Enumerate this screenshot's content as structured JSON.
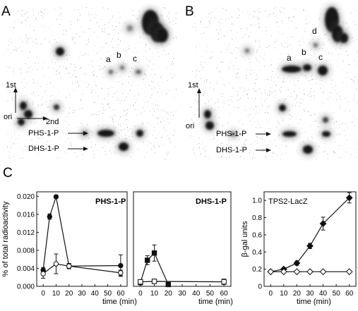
{
  "panels": {
    "a": {
      "letter": "A",
      "first_dim": "1st",
      "second_dim": "2nd",
      "origin": "ori",
      "phs_label": "PHS-1-P",
      "dhs_label": "DHS-1-P",
      "spot_labels": [
        "a",
        "b",
        "c"
      ]
    },
    "b": {
      "letter": "B",
      "first_dim": "1st",
      "origin": "ori",
      "phs_label": "PHS-1-P",
      "dhs_label": "DHS-1-P",
      "spot_labels": [
        "a",
        "b",
        "c",
        "d"
      ]
    },
    "c": {
      "letter": "C"
    }
  },
  "chart_data": [
    {
      "type": "line",
      "title": "PHS-1-P",
      "xlabel": "time (min)",
      "ylabel": "% of total radioactivity",
      "xlim": [
        -5,
        65
      ],
      "ylim": [
        0,
        0.021
      ],
      "xticks": [
        0,
        10,
        20,
        30,
        40,
        50,
        60
      ],
      "yticks": [
        0,
        0.004,
        0.008,
        0.012,
        0.016,
        0.02
      ],
      "ytick_labels": [
        "0.000",
        "0.004",
        "0.008",
        "0.012",
        "0.016",
        "0.020"
      ],
      "grid": false,
      "series": [
        {
          "marker": "filled-circle",
          "color": "#111111",
          "x": [
            0,
            5,
            10,
            20,
            60
          ],
          "y": [
            0.0036,
            0.0155,
            0.0199,
            0.0045,
            0.0046
          ],
          "err": [
            0.0006,
            0.0006,
            0.0003,
            0.0004,
            0.0024
          ]
        },
        {
          "marker": "open-circle",
          "color": "#111111",
          "x": [
            0,
            10,
            20,
            60
          ],
          "y": [
            0.0028,
            0.005,
            0.0045,
            0.003
          ],
          "err": [
            0.001,
            0.0022,
            0.0006,
            0.0006
          ]
        }
      ]
    },
    {
      "type": "line",
      "title": "DHS-1-P",
      "xlabel": "time (min)",
      "xlim": [
        -5,
        65
      ],
      "ylim": [
        0,
        0.021
      ],
      "xticks": [
        0,
        10,
        20,
        30,
        40,
        50,
        60
      ],
      "grid": false,
      "series": [
        {
          "marker": "filled-square",
          "color": "#111111",
          "x": [
            0,
            5,
            10,
            20
          ],
          "y": [
            0.0009,
            0.0058,
            0.0074,
            0.0004
          ],
          "err": [
            0.0006,
            0.001,
            0.0018,
            0.0002
          ]
        },
        {
          "marker": "open-square",
          "color": "#111111",
          "x": [
            0,
            10,
            60
          ],
          "y": [
            0.001,
            0.0011,
            0.001
          ],
          "err": [
            0.0003,
            0.0005,
            0.0006
          ]
        }
      ]
    },
    {
      "type": "line",
      "title": "TPS2-LacZ",
      "xlabel": "time (min)",
      "ylabel": "β-gal units",
      "xlim": [
        -5,
        65
      ],
      "ylim": [
        0,
        1.1
      ],
      "xticks": [
        0,
        10,
        20,
        30,
        40,
        50,
        60
      ],
      "yticks": [
        0,
        0.2,
        0.4,
        0.6,
        0.8,
        1.0
      ],
      "ytick_labels": [
        "0",
        "0.2",
        "0.4",
        "0.6",
        "0.8",
        "1.0"
      ],
      "grid": false,
      "series": [
        {
          "marker": "filled-diamond",
          "color": "#111111",
          "x": [
            0,
            10,
            20,
            30,
            40,
            60
          ],
          "y": [
            0.17,
            0.2,
            0.27,
            0.47,
            0.73,
            1.03
          ],
          "err": [
            0.01,
            0.015,
            0.025,
            0.03,
            0.075,
            0.06
          ]
        },
        {
          "marker": "open-diamond",
          "color": "#111111",
          "x": [
            0,
            10,
            20,
            30,
            40,
            60
          ],
          "y": [
            0.17,
            0.17,
            0.17,
            0.17,
            0.17,
            0.17
          ],
          "err": [
            0,
            0,
            0,
            0,
            0,
            0
          ]
        }
      ]
    }
  ]
}
